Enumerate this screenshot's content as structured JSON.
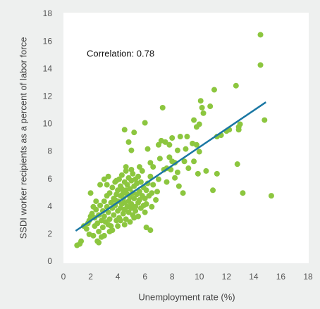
{
  "chart_data": {
    "type": "scatter",
    "annotation": "Correlation: 0.78",
    "xlabel": "Unemployment rate (%)",
    "ylabel": "SSDI worker recipients as a percent of labor force",
    "xlim": [
      0,
      18
    ],
    "ylim": [
      0,
      18
    ],
    "xticks": [
      0,
      2,
      4,
      6,
      8,
      10,
      12,
      14,
      16,
      18
    ],
    "yticks": [
      0,
      2,
      4,
      6,
      8,
      10,
      12,
      14,
      16,
      18
    ],
    "color": "#8cc63f",
    "x": [
      14.5,
      14.5,
      14.8,
      15.3,
      13.2,
      12.8,
      12.7,
      12.9,
      13.0,
      12.9,
      11.1,
      10.8,
      10.2,
      10.1,
      10.3,
      11.0,
      11.3,
      10.5,
      9.6,
      10.0,
      9.8,
      8.8,
      7.3,
      7.2,
      7.5,
      8.0,
      8.6,
      9.6,
      9.8,
      10.0,
      9.2,
      9.9,
      12.0,
      12.2,
      11.6,
      11.3,
      8.9,
      8.4,
      7.8,
      7.0,
      7.1,
      7.8,
      7.9,
      7.6,
      7.6,
      7.4,
      8.2,
      8.0,
      8.4,
      8.5,
      8.2,
      9.0,
      9.1,
      9.5,
      6.2,
      6.6,
      6.0,
      5.2,
      4.5,
      4.8,
      5.0,
      6.4,
      6.9,
      6.5,
      6.1,
      6.4,
      5.2,
      4.5,
      3.3,
      2.0,
      1.3,
      1.0,
      1.2,
      1.5,
      1.7,
      1.9,
      2.2,
      2.5,
      2.6,
      2.8,
      3.0,
      3.4,
      2.1,
      2.3,
      2.4,
      2.5,
      2.6,
      2.7,
      2.8,
      2.9,
      3.0,
      3.0,
      3.1,
      3.2,
      3.2,
      3.3,
      3.4,
      3.4,
      3.5,
      3.5,
      3.6,
      3.6,
      3.7,
      3.7,
      3.8,
      3.8,
      3.9,
      3.9,
      4.0,
      4.0,
      4.0,
      4.1,
      4.1,
      4.2,
      4.2,
      4.2,
      4.3,
      4.3,
      4.4,
      4.4,
      4.4,
      4.5,
      4.5,
      4.5,
      4.6,
      4.6,
      4.6,
      4.7,
      4.7,
      4.7,
      4.8,
      4.8,
      4.8,
      4.9,
      4.9,
      4.9,
      5.0,
      5.0,
      5.0,
      5.1,
      5.1,
      5.1,
      5.2,
      5.2,
      5.3,
      5.3,
      5.3,
      5.4,
      5.4,
      5.5,
      5.5,
      5.5,
      5.6,
      5.6,
      5.7,
      5.7,
      5.8,
      5.8,
      5.9,
      5.9,
      6.0,
      6.0,
      6.1,
      6.1,
      6.2,
      6.3,
      6.4,
      6.5,
      6.6,
      6.8,
      7.0,
      3.2,
      3.0,
      2.7,
      2.4,
      2.2,
      1.9,
      1.8,
      2.0,
      2.3,
      2.6,
      2.9,
      3.3,
      3.6,
      4.0,
      4.2,
      3.9,
      4.6,
      5.0,
      5.6,
      4.3,
      3.8
    ],
    "values": [
      16.5,
      14.3,
      10.3,
      4.8,
      5.0,
      7.1,
      12.8,
      9.6,
      10.0,
      9.8,
      12.5,
      11.3,
      11.2,
      11.7,
      10.8,
      5.2,
      6.4,
      6.6,
      10.3,
      10.0,
      9.8,
      5.0,
      11.2,
      8.8,
      8.7,
      9.0,
      9.1,
      7.3,
      8.5,
      8.0,
      6.8,
      6.4,
      9.5,
      9.6,
      9.2,
      9.1,
      7.3,
      8.1,
      8.5,
      8.5,
      7.5,
      7.6,
      6.7,
      5.8,
      6.8,
      6.7,
      7.2,
      7.3,
      6.5,
      5.5,
      6.1,
      8.2,
      9.1,
      8.6,
      8.2,
      6.9,
      10.1,
      9.4,
      9.6,
      8.7,
      8.1,
      7.2,
      5.1,
      4.0,
      2.5,
      2.3,
      3.2,
      2.7,
      6.2,
      5.0,
      1.5,
      1.2,
      1.3,
      2.6,
      2.4,
      2.0,
      1.9,
      1.5,
      1.4,
      1.8,
      1.9,
      2.2,
      3.5,
      3.2,
      3.8,
      2.8,
      3.4,
      4.1,
      3.0,
      3.7,
      4.4,
      3.3,
      2.9,
      4.0,
      4.8,
      3.6,
      5.0,
      3.1,
      4.3,
      2.6,
      3.9,
      5.4,
      4.6,
      3.4,
      4.1,
      5.8,
      3.0,
      4.9,
      3.7,
      5.2,
      4.4,
      6.0,
      3.2,
      4.8,
      5.5,
      3.9,
      4.2,
      6.3,
      3.5,
      5.0,
      4.6,
      5.8,
      3.8,
      4.3,
      6.6,
      5.2,
      3.1,
      4.0,
      4.9,
      5.6,
      3.6,
      6.1,
      4.4,
      5.3,
      2.9,
      4.7,
      3.9,
      5.9,
      4.2,
      5.0,
      6.4,
      3.4,
      4.6,
      5.5,
      4.0,
      6.0,
      3.7,
      4.9,
      5.7,
      4.3,
      3.3,
      6.2,
      5.1,
      4.5,
      3.9,
      5.8,
      4.8,
      6.6,
      4.1,
      5.4,
      4.6,
      3.6,
      5.2,
      4.2,
      5.7,
      4.8,
      6.2,
      5.0,
      5.6,
      4.5,
      6.0,
      5.6,
      6.0,
      5.6,
      4.4,
      4.0,
      3.0,
      2.8,
      3.3,
      2.6,
      2.2,
      2.5,
      2.7,
      2.3,
      2.6,
      3.0,
      5.9,
      6.9,
      6.7,
      6.9,
      5.3,
      4.5
    ],
    "trendline": {
      "x": [
        0.9,
        14.9
      ],
      "y": [
        2.25,
        11.6
      ],
      "color": "#1a77a3"
    }
  }
}
